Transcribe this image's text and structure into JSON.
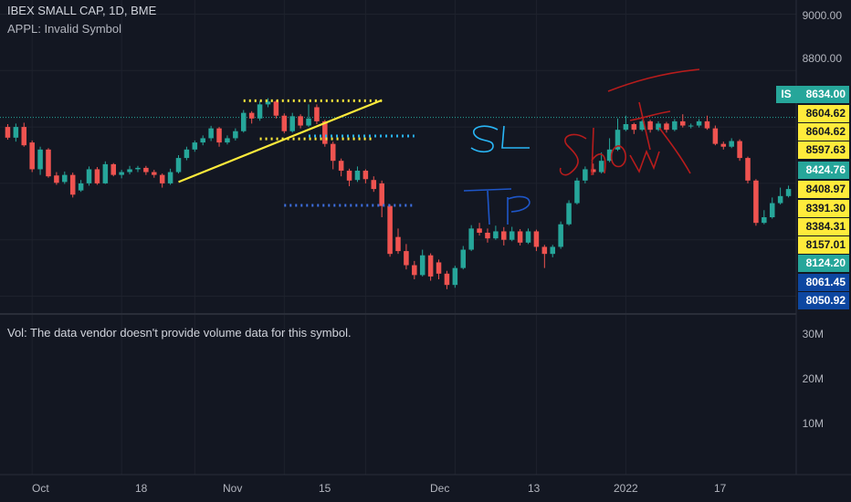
{
  "header": {
    "symbol_title": "IBEX SMALL CAP, 1D, BME",
    "compare_line": "APPL: Invalid Symbol",
    "volume_note": "Vol: The data vendor doesn't provide volume data for this symbol."
  },
  "colors": {
    "background": "#131722",
    "up": "#26a69a",
    "down": "#ef5350",
    "yellow": "#ffeb3b",
    "teal_tag": "#26a69a",
    "blue_tag": "#0d47a1"
  },
  "price_axis": {
    "ticks": [
      "9000.00",
      "8800.00"
    ]
  },
  "volume_axis": {
    "ticks": [
      "30M",
      "20M",
      "10M"
    ]
  },
  "time_axis": {
    "ticks": [
      "Oct",
      "18",
      "Nov",
      "15",
      "Dec",
      "13",
      "2022",
      "17"
    ]
  },
  "current_price": {
    "prefix": "IS",
    "value": "8634.00"
  },
  "price_tags": [
    {
      "text": "8604.62",
      "style": "yellow"
    },
    {
      "text": "8604.62",
      "style": "yellow"
    },
    {
      "text": "8597.63",
      "style": "yellow"
    },
    {
      "text": "8424.76",
      "style": "teal"
    },
    {
      "text": "8408.97",
      "style": "yellow"
    },
    {
      "text": "8391.30",
      "style": "yellow"
    },
    {
      "text": "8384.31",
      "style": "yellow"
    },
    {
      "text": "8157.01",
      "style": "yellow"
    },
    {
      "text": "8124.20",
      "style": "teal"
    },
    {
      "text": "8061.45",
      "style": "blue"
    },
    {
      "text": "8050.92",
      "style": "blue"
    }
  ],
  "annotations": {
    "sl": "SL",
    "tp": "TP",
    "short": "Short"
  },
  "chart_data": {
    "type": "candlestick",
    "title": "IBEX SMALL CAP, 1D, BME",
    "ylim": [
      7950,
      9050
    ],
    "volume_ylim": [
      0,
      35
    ],
    "volume_unit": "M",
    "x_tick_labels": [
      "Oct",
      "18",
      "Nov",
      "15",
      "Dec",
      "13",
      "2022",
      "17"
    ],
    "x_tick_index": [
      3,
      14,
      23,
      34,
      44,
      55,
      65,
      76
    ],
    "current_price": 8634.0,
    "candles": [
      [
        8600,
        8562,
        8610,
        8555
      ],
      [
        8562,
        8600,
        8612,
        8548
      ],
      [
        8600,
        8535,
        8615,
        8530
      ],
      [
        8545,
        8450,
        8552,
        8440
      ],
      [
        8450,
        8520,
        8530,
        8430
      ],
      [
        8520,
        8425,
        8525,
        8420
      ],
      [
        8428,
        8402,
        8440,
        8395
      ],
      [
        8405,
        8430,
        8442,
        8398
      ],
      [
        8430,
        8360,
        8438,
        8350
      ],
      [
        8375,
        8400,
        8412,
        8370
      ],
      [
        8400,
        8450,
        8460,
        8392
      ],
      [
        8450,
        8400,
        8458,
        8395
      ],
      [
        8400,
        8468,
        8478,
        8398
      ],
      [
        8468,
        8430,
        8472,
        8425
      ],
      [
        8430,
        8440,
        8448,
        8418
      ],
      [
        8440,
        8450,
        8462,
        8432
      ],
      [
        8450,
        8455,
        8462,
        8440
      ],
      [
        8455,
        8440,
        8462,
        8430
      ],
      [
        8440,
        8430,
        8448,
        8420
      ],
      [
        8430,
        8400,
        8435,
        8385
      ],
      [
        8400,
        8440,
        8452,
        8395
      ],
      [
        8440,
        8490,
        8500,
        8435
      ],
      [
        8490,
        8520,
        8530,
        8482
      ],
      [
        8520,
        8545,
        8552,
        8512
      ],
      [
        8545,
        8560,
        8570,
        8535
      ],
      [
        8560,
        8595,
        8604,
        8550
      ],
      [
        8595,
        8545,
        8600,
        8530
      ],
      [
        8545,
        8560,
        8570,
        8538
      ],
      [
        8560,
        8585,
        8595,
        8552
      ],
      [
        8585,
        8650,
        8660,
        8580
      ],
      [
        8650,
        8630,
        8656,
        8612
      ],
      [
        8630,
        8680,
        8692,
        8622
      ],
      [
        8680,
        8690,
        8702,
        8670
      ],
      [
        8690,
        8640,
        8695,
        8630
      ],
      [
        8640,
        8585,
        8648,
        8578
      ],
      [
        8585,
        8638,
        8650,
        8580
      ],
      [
        8638,
        8605,
        8645,
        8595
      ],
      [
        8605,
        8630,
        8680,
        8600
      ],
      [
        8670,
        8620,
        8680,
        8610
      ],
      [
        8620,
        8540,
        8625,
        8530
      ],
      [
        8540,
        8480,
        8548,
        8450
      ],
      [
        8480,
        8445,
        8488,
        8425
      ],
      [
        8445,
        8410,
        8452,
        8390
      ],
      [
        8412,
        8445,
        8460,
        8405
      ],
      [
        8445,
        8415,
        8450,
        8400
      ],
      [
        8412,
        8380,
        8425,
        8370
      ],
      [
        8400,
        8320,
        8410,
        8280
      ],
      [
        8320,
        8150,
        8325,
        8140
      ],
      [
        8210,
        8160,
        8240,
        8150
      ],
      [
        8160,
        8110,
        8185,
        8095
      ],
      [
        8110,
        8075,
        8125,
        8060
      ],
      [
        8075,
        8145,
        8165,
        8070
      ],
      [
        8145,
        8070,
        8152,
        8055
      ],
      [
        8120,
        8080,
        8130,
        8060
      ],
      [
        8080,
        8040,
        8090,
        8025
      ],
      [
        8040,
        8100,
        8108,
        8030
      ],
      [
        8100,
        8165,
        8178,
        8095
      ],
      [
        8165,
        8240,
        8252,
        8160
      ],
      [
        8240,
        8225,
        8260,
        8215
      ],
      [
        8225,
        8205,
        8240,
        8190
      ],
      [
        8205,
        8230,
        8250,
        8200
      ],
      [
        8230,
        8200,
        8245,
        8180
      ],
      [
        8200,
        8230,
        8246,
        8195
      ],
      [
        8230,
        8190,
        8238,
        8180
      ],
      [
        8190,
        8230,
        8240,
        8185
      ],
      [
        8230,
        8175,
        8236,
        8160
      ],
      [
        8175,
        8150,
        8182,
        8100
      ],
      [
        8150,
        8175,
        8182,
        8138
      ],
      [
        8175,
        8255,
        8265,
        8168
      ],
      [
        8255,
        8330,
        8340,
        8250
      ],
      [
        8330,
        8410,
        8420,
        8325
      ],
      [
        8410,
        8450,
        8460,
        8400
      ],
      [
        8450,
        8440,
        8470,
        8430
      ],
      [
        8440,
        8480,
        8510,
        8435
      ],
      [
        8480,
        8520,
        8560,
        8475
      ],
      [
        8520,
        8590,
        8630,
        8515
      ],
      [
        8590,
        8610,
        8640,
        8585
      ],
      [
        8610,
        8590,
        8615,
        8575
      ],
      [
        8590,
        8620,
        8625,
        8585
      ],
      [
        8620,
        8590,
        8625,
        8580
      ],
      [
        8590,
        8612,
        8620,
        8585
      ],
      [
        8612,
        8590,
        8618,
        8580
      ],
      [
        8590,
        8620,
        8628,
        8585
      ],
      [
        8620,
        8605,
        8645,
        8598
      ],
      [
        8605,
        8605,
        8612,
        8595
      ],
      [
        8605,
        8620,
        8628,
        8598
      ],
      [
        8620,
        8595,
        8640,
        8590
      ],
      [
        8595,
        8540,
        8605,
        8535
      ],
      [
        8540,
        8530,
        8548,
        8520
      ],
      [
        8530,
        8550,
        8560,
        8525
      ],
      [
        8550,
        8490,
        8556,
        8480
      ],
      [
        8490,
        8410,
        8495,
        8400
      ],
      [
        8410,
        8260,
        8415,
        8250
      ],
      [
        8260,
        8280,
        8305,
        8255
      ],
      [
        8280,
        8330,
        8350,
        8275
      ],
      [
        8330,
        8355,
        8385,
        8325
      ],
      [
        8355,
        8380,
        8392,
        8350
      ]
    ],
    "drawings": [
      {
        "type": "trend_line",
        "color": "yellow",
        "from": [
          21,
          8405
        ],
        "to": [
          46,
          8695
        ]
      },
      {
        "type": "dotted_level",
        "color": "yellow",
        "price": 8693,
        "from_index": 29,
        "to_index": 46
      },
      {
        "type": "dotted_level",
        "color": "yellow",
        "price": 8558,
        "from_index": 31,
        "to_index": 45
      },
      {
        "type": "dotted_level",
        "color": "deepskyblue",
        "price": 8568,
        "from_index": 37,
        "to_index": 50
      },
      {
        "type": "dotted_level",
        "color": "royalblue",
        "price": 8322,
        "from_index": 34,
        "to_index": 50
      }
    ]
  }
}
